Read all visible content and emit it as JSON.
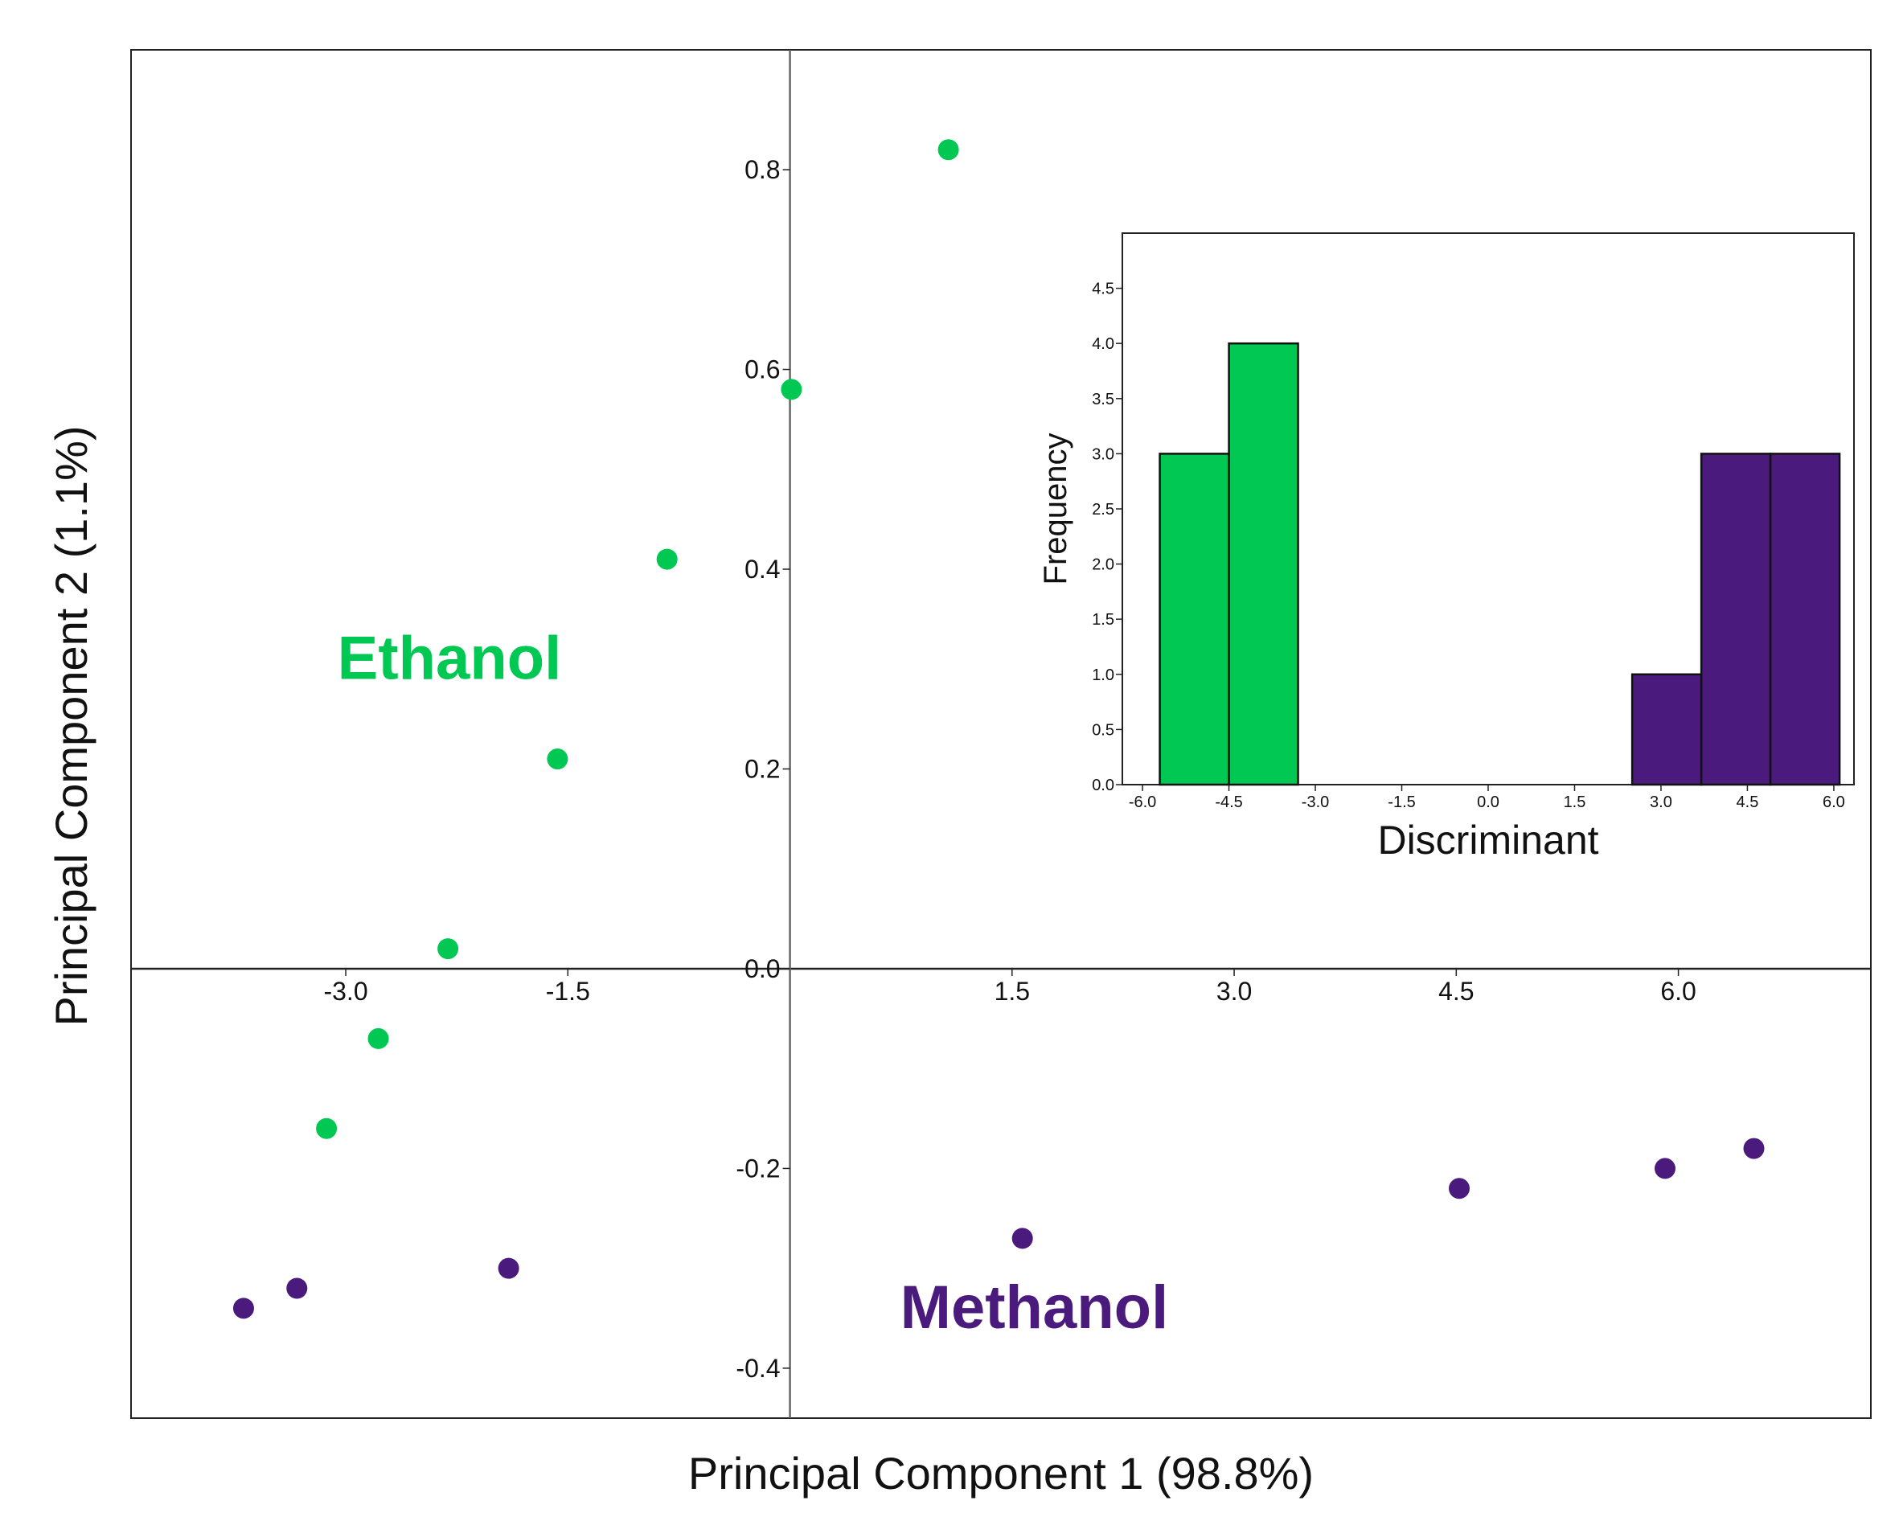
{
  "colors": {
    "ethanol": "#00C853",
    "methanol": "#4A1A7C",
    "axis": "#222222",
    "zero_line_v": "#666666"
  },
  "chart_data": [
    {
      "type": "scatter",
      "xlabel": "Principal Component 1 (98.8%)",
      "ylabel": "Principal Component 2 (1.1%)",
      "xlim": [
        -4.45,
        7.3
      ],
      "ylim": [
        -0.45,
        0.92
      ],
      "x_ticks": [
        -3.0,
        -1.5,
        1.5,
        3.0,
        4.5,
        6.0
      ],
      "x_tick_labels": [
        "-3.0",
        "-1.5",
        "1.5",
        "3.0",
        "4.5",
        "6.0"
      ],
      "y_ticks": [
        -0.4,
        -0.2,
        0.0,
        0.2,
        0.4,
        0.6,
        0.8
      ],
      "y_tick_labels": [
        "-0.4",
        "-0.2",
        "0.0",
        "0.2",
        "0.4",
        "0.6",
        "0.8"
      ],
      "annotations": [
        {
          "text": "Ethanol",
          "series": "Ethanol",
          "x": -2.3,
          "y": 0.29
        },
        {
          "text": "Methanol",
          "series": "Methanol",
          "x": 1.65,
          "y": -0.36
        }
      ],
      "series": [
        {
          "name": "Ethanol",
          "color_key": "ethanol",
          "points": [
            {
              "x": 1.07,
              "y": 0.82
            },
            {
              "x": 0.01,
              "y": 0.58
            },
            {
              "x": -0.83,
              "y": 0.41
            },
            {
              "x": -1.57,
              "y": 0.21
            },
            {
              "x": -2.31,
              "y": 0.02
            },
            {
              "x": -2.78,
              "y": -0.07
            },
            {
              "x": -3.13,
              "y": -0.16
            }
          ]
        },
        {
          "name": "Methanol",
          "color_key": "methanol",
          "points": [
            {
              "x": -3.69,
              "y": -0.34
            },
            {
              "x": -3.33,
              "y": -0.32
            },
            {
              "x": -1.9,
              "y": -0.3
            },
            {
              "x": 1.57,
              "y": -0.27
            },
            {
              "x": 4.52,
              "y": -0.22
            },
            {
              "x": 5.91,
              "y": -0.2
            },
            {
              "x": 6.51,
              "y": -0.18
            }
          ]
        }
      ]
    },
    {
      "type": "bar",
      "subtype": "histogram",
      "xlabel": "Discriminant",
      "ylabel": "Frequency",
      "xlim": [
        -6.35,
        6.35
      ],
      "ylim": [
        0,
        5.0
      ],
      "x_ticks": [
        -6.0,
        -4.5,
        -3.0,
        -1.5,
        0.0,
        1.5,
        3.0,
        4.5,
        6.0
      ],
      "x_tick_labels": [
        "-6.0",
        "-4.5",
        "-3.0",
        "-1.5",
        "0.0",
        "1.5",
        "3.0",
        "4.5",
        "6.0"
      ],
      "y_ticks": [
        0.0,
        0.5,
        1.0,
        1.5,
        2.0,
        2.5,
        3.0,
        3.5,
        4.0,
        4.5
      ],
      "y_tick_labels": [
        "0.0",
        "0.5",
        "1.0",
        "1.5",
        "2.0",
        "2.5",
        "3.0",
        "3.5",
        "4.0",
        "4.5"
      ],
      "bins": [
        {
          "x0": -5.7,
          "x1": -4.5,
          "count": 3,
          "series": "Ethanol",
          "color_key": "ethanol"
        },
        {
          "x0": -4.5,
          "x1": -3.3,
          "count": 4,
          "series": "Ethanol",
          "color_key": "ethanol"
        },
        {
          "x0": 2.5,
          "x1": 3.7,
          "count": 1,
          "series": "Methanol",
          "color_key": "methanol"
        },
        {
          "x0": 3.7,
          "x1": 4.9,
          "count": 3,
          "series": "Methanol",
          "color_key": "methanol"
        },
        {
          "x0": 4.9,
          "x1": 6.1,
          "count": 3,
          "series": "Methanol",
          "color_key": "methanol"
        }
      ]
    }
  ]
}
